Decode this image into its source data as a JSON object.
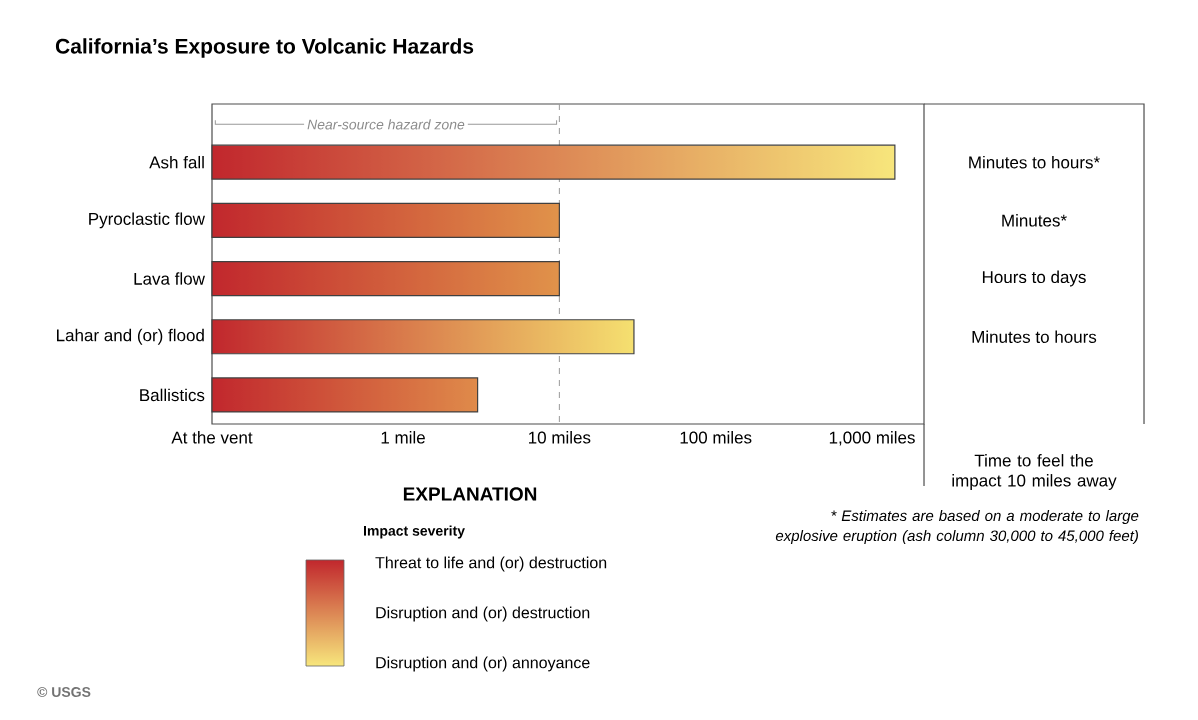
{
  "chart_data": {
    "type": "bar",
    "orientation": "horizontal",
    "title": "California’s Exposure to Volcanic Hazards",
    "categories": [
      "Ash fall",
      "Pyroclastic flow",
      "Lava flow",
      "Lahar and (or) flood",
      "Ballistics"
    ],
    "values": [
      1400,
      10,
      10,
      30,
      3
    ],
    "color": "#c1272d",
    "colors": [
      "#f7e67c",
      "#e0924a",
      "#e0924a",
      "#f5e070",
      "#df8a4a"
    ],
    "log": "x",
    "xlim": [
      0.06,
      2150
    ],
    "xticks": [
      {
        "value": 0.06,
        "label": "At the vent"
      },
      {
        "value": 1,
        "label": "1 mile"
      },
      {
        "value": 10,
        "label": "10 miles"
      },
      {
        "value": 100,
        "label": "100 miles"
      },
      {
        "value": 1000,
        "label": "1,000 miles"
      }
    ],
    "ref_lines": [
      {
        "axis": "x",
        "value": 10,
        "line_style": "dashed",
        "color": "#9a9a9a"
      }
    ],
    "legend_title": "EXPLANATION",
    "annotations": [
      "Near-source hazard zone",
      "Minutes to hours*",
      "Minutes*",
      "Hours to days",
      "Minutes to hours",
      "Time to feel the impact 10 miles away",
      "* Estimates are based on a moderate to large explosive eruption (ash column 30,000 to 45,000 feet)",
      "Impact severity",
      "Threat to life and (or) destruction",
      "Disruption and (or) destruction",
      "Disruption and (or) annoyance",
      "© USGS"
    ]
  }
}
